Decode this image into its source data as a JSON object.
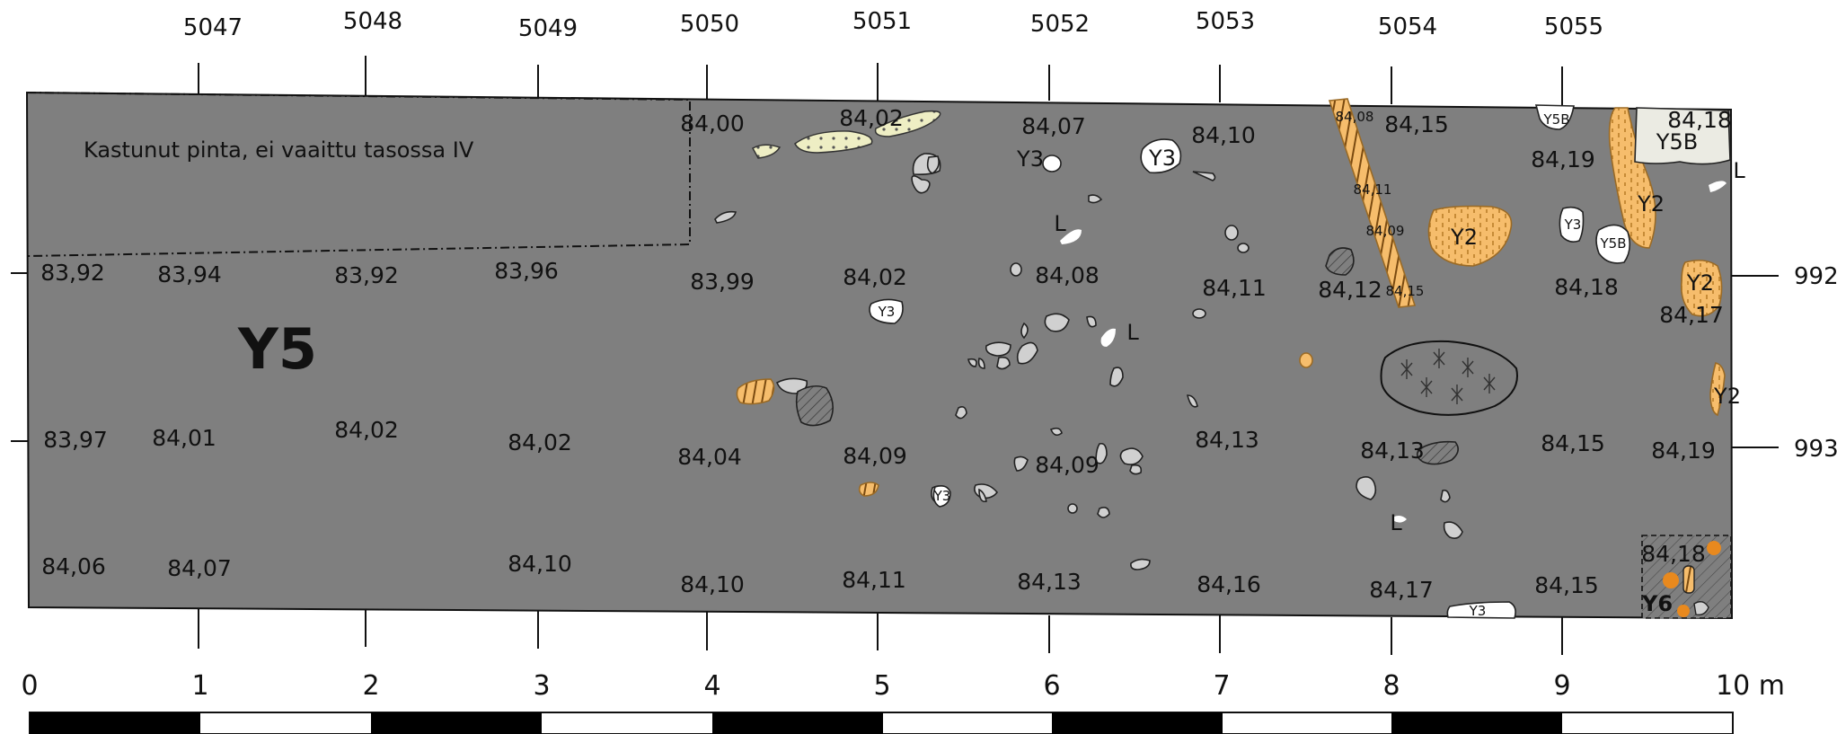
{
  "map": {
    "x_grid_labels": [
      "5047",
      "5048",
      "5049",
      "5050",
      "5051",
      "5052",
      "5053",
      "5054",
      "5055"
    ],
    "y_grid_labels": [
      "992",
      "993"
    ],
    "scale_labels": [
      "0",
      "1",
      "2",
      "3",
      "4",
      "5",
      "6",
      "7",
      "8",
      "9",
      "10 m"
    ],
    "burnt_area_note": "Kastunut pinta, ei vaaittu tasossa IV",
    "main_layer": "Y5",
    "corner_layer": "Y6",
    "elevations": [
      "84,00",
      "84,02",
      "84,07",
      "84,10",
      "84,08",
      "84,15",
      "84,19",
      "84,18",
      "83,92",
      "83,94",
      "83,92",
      "83,96",
      "83,99",
      "84,02",
      "84,08",
      "84,11",
      "84,11",
      "84,09",
      "84,12",
      "84,15",
      "84,18",
      "84,17",
      "83,97",
      "84,01",
      "84,02",
      "84,02",
      "84,04",
      "84,09",
      "84,09",
      "84,13",
      "84,13",
      "84,15",
      "84,19",
      "84,06",
      "84,07",
      "84,10",
      "84,10",
      "84,11",
      "84,13",
      "84,16",
      "84,17",
      "84,15",
      "84,18"
    ],
    "context_labels": [
      "Y3",
      "Y3",
      "Y3",
      "Y3",
      "Y3",
      "Y3",
      "L",
      "L",
      "L",
      "L",
      "Y2",
      "Y2",
      "Y2",
      "Y2",
      "Y5B",
      "Y5B",
      "Y5B"
    ],
    "colors": {
      "surface": "#7f7f7f",
      "stone": "#d0d0d0",
      "sand_fill": "#f6bd6c",
      "pale_fill": "#eeeec4",
      "white_fill": "#ffffff",
      "light_grey_fill": "#ebebe3",
      "orange_dot": "#e8891e"
    }
  }
}
